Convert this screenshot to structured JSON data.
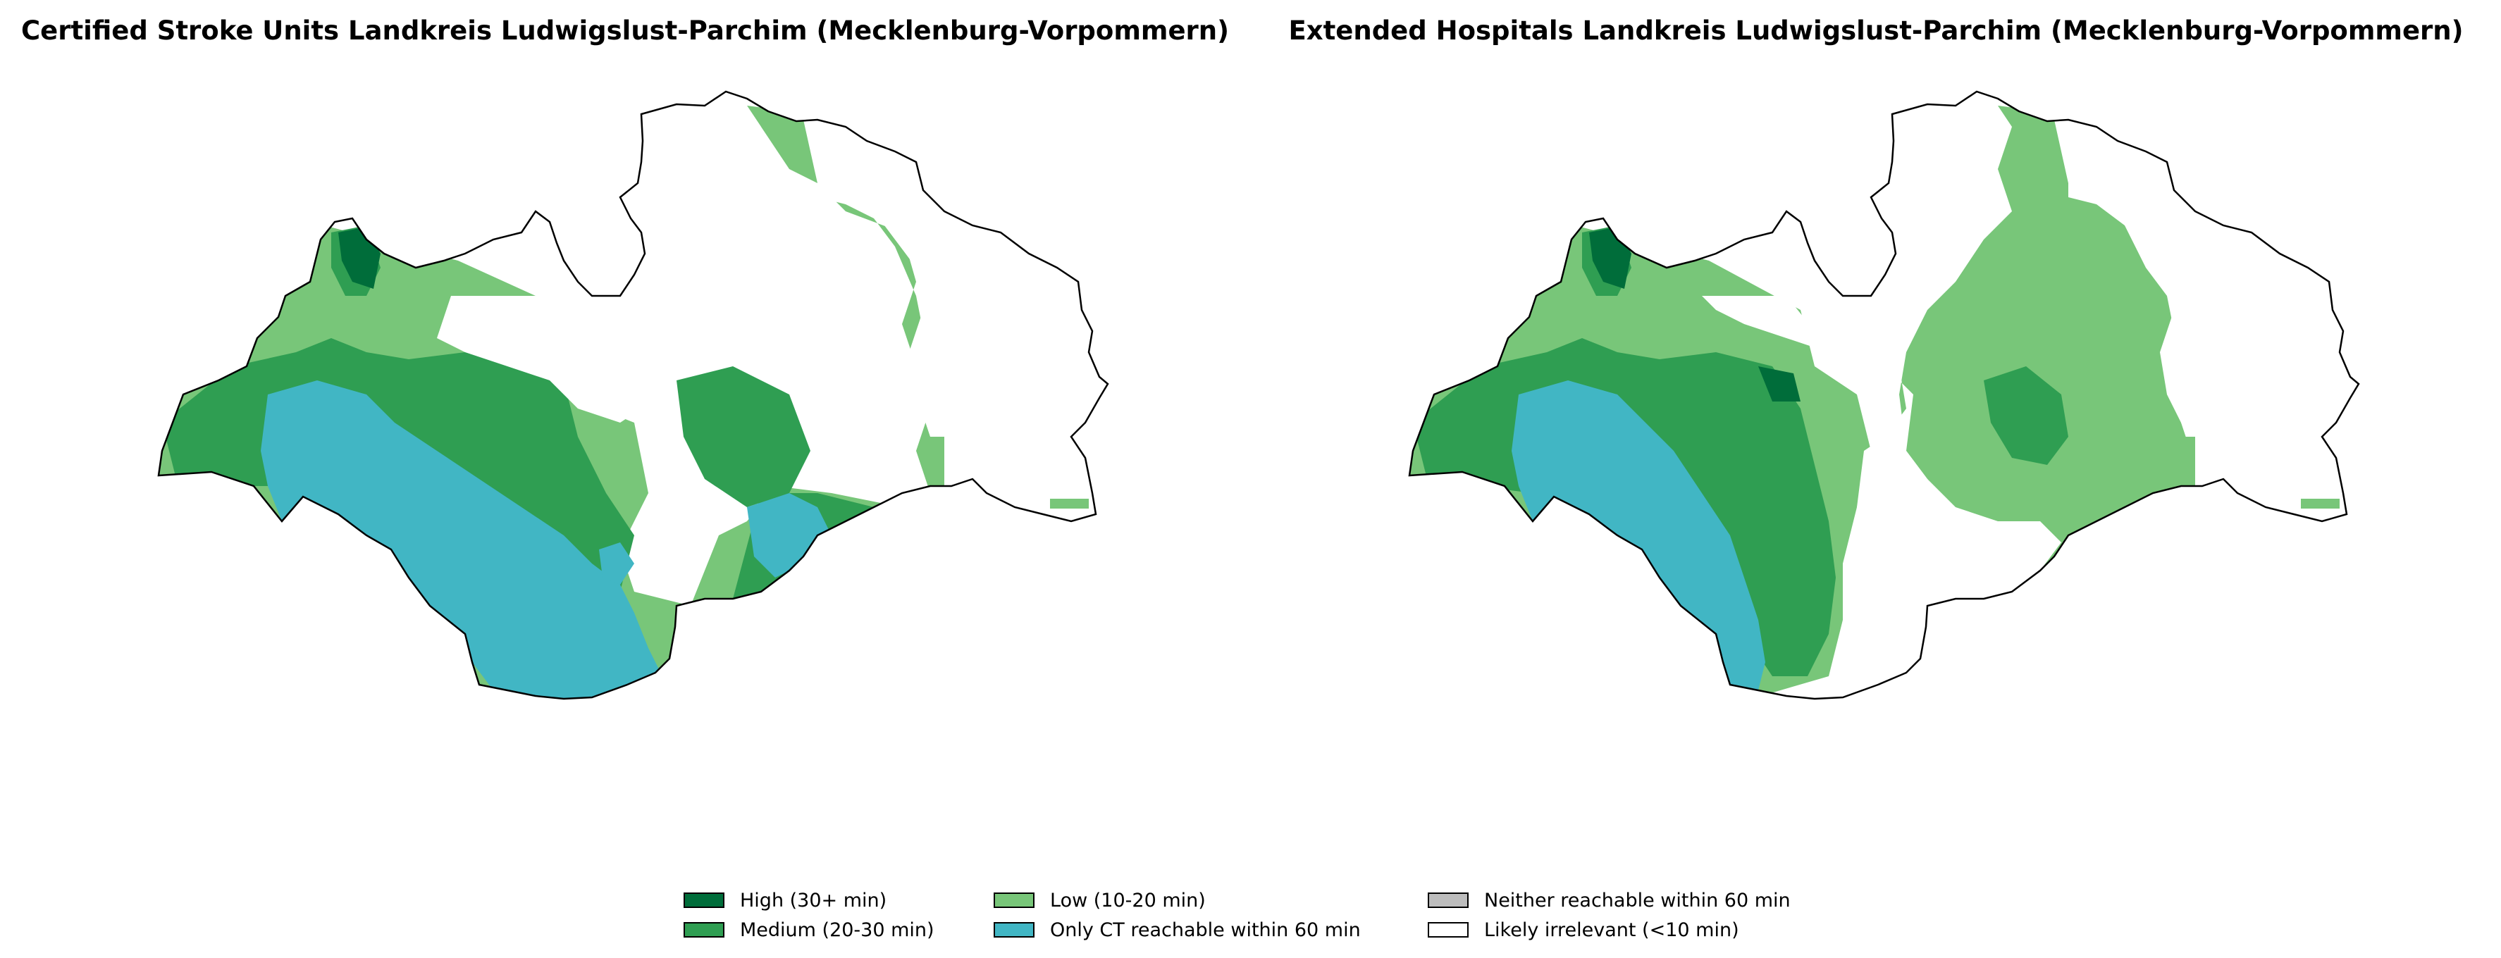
{
  "maps": [
    {
      "title": "Certified Stroke Units Landkreis Ludwigslust-Parchim (Mecklenburg-Vorpommern)"
    },
    {
      "title": "Extended Hospitals Landkreis Ludwigslust-Parchim (Mecklenburg-Vorpommern)"
    }
  ],
  "legend": {
    "items": [
      {
        "label": "High (30+ min)",
        "color": "#006d3a"
      },
      {
        "label": "Medium (20-30 min)",
        "color": "#2f9e52"
      },
      {
        "label": "Low (10-20 min)",
        "color": "#78c679"
      },
      {
        "label": "Only CT reachable within 60 min",
        "color": "#41b6c4"
      },
      {
        "label": "Neither reachable within 60 min",
        "color": "#bdbdbd"
      },
      {
        "label": "Likely irrelevant (<10 min)",
        "color": "#ffffff"
      }
    ]
  },
  "colors": {
    "outline": "#000000",
    "background": "#ffffff"
  }
}
